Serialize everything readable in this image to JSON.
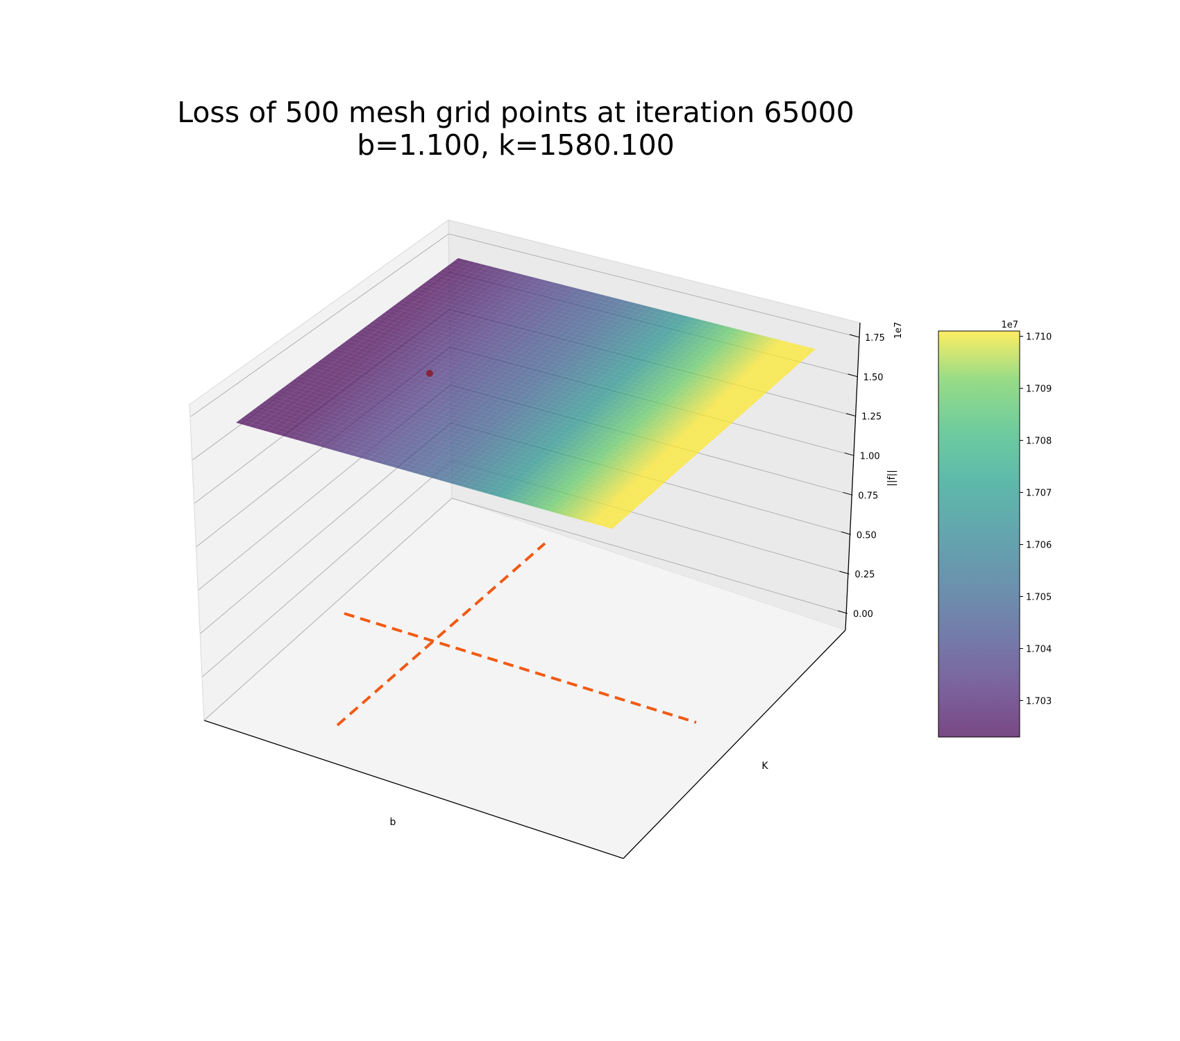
{
  "chart_data": {
    "type": "surface3d",
    "title_line1": "Loss of 500 mesh grid points at iteration 65000",
    "title_line2": "b=1.100, k=1580.100",
    "xlabel": "b",
    "ylabel": "K",
    "zlabel": "||f||",
    "z_offset_label": "1e7",
    "z_ticks": [
      "0.00",
      "0.25",
      "0.50",
      "0.75",
      "1.00",
      "1.25",
      "1.50",
      "1.75"
    ],
    "z_tick_values": [
      0.0,
      0.25,
      0.5,
      0.75,
      1.0,
      1.25,
      1.5,
      1.75
    ],
    "surface_z_range": [
      1.7023,
      1.7101
    ],
    "colormap": "viridis",
    "colorbar": {
      "offset_label": "1e7",
      "ticks": [
        "1.703",
        "1.704",
        "1.705",
        "1.706",
        "1.707",
        "1.708",
        "1.709",
        "1.710"
      ],
      "tick_values": [
        1.703,
        1.704,
        1.705,
        1.706,
        1.707,
        1.708,
        1.709,
        1.71
      ],
      "range": [
        1.7023,
        1.7101
      ]
    },
    "marker": {
      "z": 1.7023,
      "color": "#8b1a2b"
    },
    "floor_lines": {
      "color": "#f05a14",
      "style": "dashed"
    },
    "grid": true
  }
}
